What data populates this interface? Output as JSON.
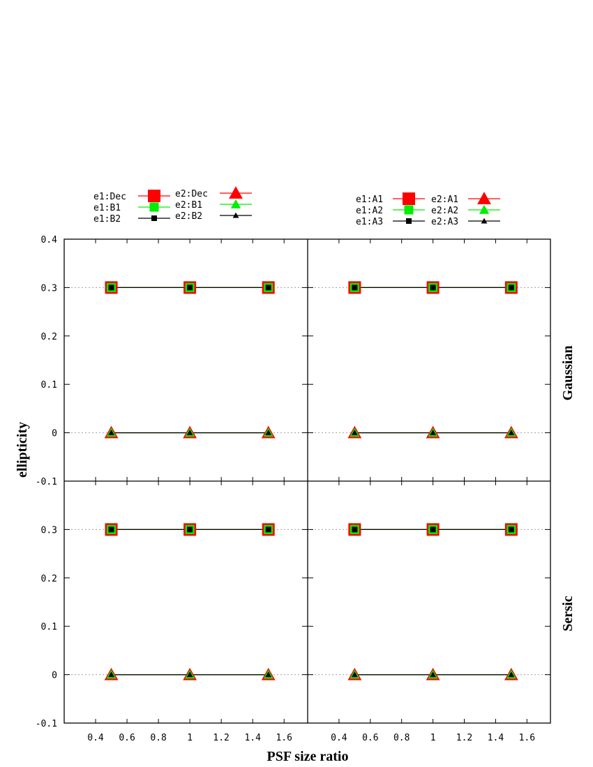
{
  "chart_data": {
    "type": "line",
    "xlabel": "PSF size ratio",
    "ylabel": "ellipticity",
    "xlim": [
      0.2,
      1.75
    ],
    "ylim": [
      -0.1,
      0.4
    ],
    "xticks": [
      0.4,
      0.6,
      0.8,
      1,
      1.2,
      1.4,
      1.6
    ],
    "xtick_labels": [
      "0.4",
      "0.6",
      "0.8",
      "1",
      "1.2",
      "1.4",
      "1.6"
    ],
    "yticks_top": [
      -0.1,
      0,
      0.1,
      0.2,
      0.3,
      0.4
    ],
    "ytick_labels_top": [
      "-0.1",
      "0",
      "0.1",
      "0.2",
      "0.3",
      "0.4"
    ],
    "yticks_bottom": [
      -0.1,
      0,
      0.1,
      0.2,
      0.3
    ],
    "ytick_labels_bottom": [
      "-0.1",
      "0",
      "0.1",
      "0.2",
      "0.3"
    ],
    "row_labels": [
      "Gaussian",
      "Sersic"
    ],
    "grid": "dotted reference lines at y=0 and y=0.3",
    "x": [
      0.5,
      1.0,
      1.5
    ],
    "legends": [
      {
        "column": "left",
        "entries": [
          {
            "name": "e1:Dec",
            "marker": "square",
            "size": "large",
            "color": "#ff0000"
          },
          {
            "name": "e1:B1",
            "marker": "square",
            "size": "medium",
            "color": "#00ee00"
          },
          {
            "name": "e1:B2",
            "marker": "square",
            "size": "small",
            "color": "#000000"
          },
          {
            "name": "e2:Dec",
            "marker": "triangle",
            "size": "large",
            "color": "#ff0000"
          },
          {
            "name": "e2:B1",
            "marker": "triangle",
            "size": "medium",
            "color": "#00ee00"
          },
          {
            "name": "e2:B2",
            "marker": "triangle",
            "size": "small",
            "color": "#000000"
          }
        ]
      },
      {
        "column": "right",
        "entries": [
          {
            "name": "e1:A1",
            "marker": "square",
            "size": "large",
            "color": "#ff0000"
          },
          {
            "name": "e1:A2",
            "marker": "square",
            "size": "medium",
            "color": "#00ee00"
          },
          {
            "name": "e1:A3",
            "marker": "square",
            "size": "small",
            "color": "#000000"
          },
          {
            "name": "e2:A1",
            "marker": "triangle",
            "size": "large",
            "color": "#ff0000"
          },
          {
            "name": "e2:A2",
            "marker": "triangle",
            "size": "medium",
            "color": "#00ee00"
          },
          {
            "name": "e2:A3",
            "marker": "triangle",
            "size": "small",
            "color": "#000000"
          }
        ]
      }
    ],
    "panels": [
      {
        "row": "Gaussian",
        "column": "left",
        "series": [
          {
            "name": "e1:Dec",
            "values": [
              0.3,
              0.3,
              0.3
            ]
          },
          {
            "name": "e1:B1",
            "values": [
              0.3,
              0.3,
              0.3
            ]
          },
          {
            "name": "e1:B2",
            "values": [
              0.3,
              0.3,
              0.3
            ]
          },
          {
            "name": "e2:Dec",
            "values": [
              0,
              0,
              0
            ]
          },
          {
            "name": "e2:B1",
            "values": [
              0,
              0,
              0
            ]
          },
          {
            "name": "e2:B2",
            "values": [
              0,
              0,
              0
            ]
          }
        ]
      },
      {
        "row": "Gaussian",
        "column": "right",
        "series": [
          {
            "name": "e1:A1",
            "values": [
              0.3,
              0.3,
              0.3
            ]
          },
          {
            "name": "e1:A2",
            "values": [
              0.3,
              0.3,
              0.3
            ]
          },
          {
            "name": "e1:A3",
            "values": [
              0.3,
              0.3,
              0.3
            ]
          },
          {
            "name": "e2:A1",
            "values": [
              0,
              0,
              0
            ]
          },
          {
            "name": "e2:A2",
            "values": [
              0,
              0,
              0
            ]
          },
          {
            "name": "e2:A3",
            "values": [
              0,
              0,
              0
            ]
          }
        ]
      },
      {
        "row": "Sersic",
        "column": "left",
        "series": [
          {
            "name": "e1:Dec",
            "values": [
              0.3,
              0.3,
              0.3
            ]
          },
          {
            "name": "e1:B1",
            "values": [
              0.3,
              0.3,
              0.3
            ]
          },
          {
            "name": "e1:B2",
            "values": [
              0.3,
              0.3,
              0.3
            ]
          },
          {
            "name": "e2:Dec",
            "values": [
              0,
              0,
              0
            ]
          },
          {
            "name": "e2:B1",
            "values": [
              0,
              0,
              0
            ]
          },
          {
            "name": "e2:B2",
            "values": [
              0,
              0,
              0
            ]
          }
        ]
      },
      {
        "row": "Sersic",
        "column": "right",
        "series": [
          {
            "name": "e1:A1",
            "values": [
              0.3,
              0.3,
              0.3
            ]
          },
          {
            "name": "e1:A2",
            "values": [
              0.3,
              0.3,
              0.3
            ]
          },
          {
            "name": "e1:A3",
            "values": [
              0.3,
              0.3,
              0.3
            ]
          },
          {
            "name": "e2:A1",
            "values": [
              0,
              0,
              0
            ]
          },
          {
            "name": "e2:A2",
            "values": [
              0,
              0,
              0
            ]
          },
          {
            "name": "e2:A3",
            "values": [
              0,
              0,
              0
            ]
          }
        ]
      }
    ]
  }
}
